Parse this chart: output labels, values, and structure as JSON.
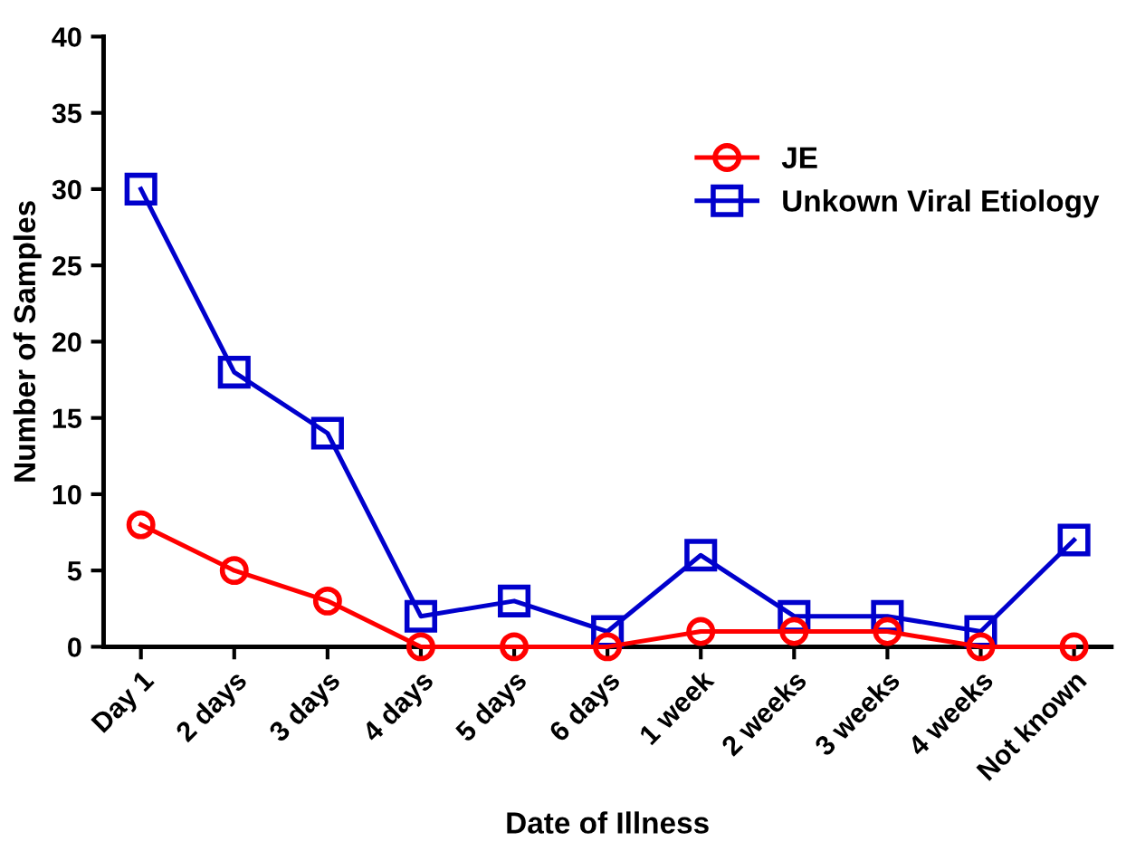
{
  "chart_data": {
    "type": "line",
    "xlabel": "Date of Illness",
    "ylabel": "Number of Samples",
    "categories": [
      "Day 1",
      "2 days",
      "3 days",
      "4 days",
      "5 days",
      "6 days",
      "1 week",
      "2 weeks",
      "3 weeks",
      "4 weeks",
      "Not known"
    ],
    "series": [
      {
        "name": "JE",
        "color": "#ff0000",
        "marker": "circle",
        "values": [
          8,
          5,
          3,
          0,
          0,
          0,
          1,
          1,
          1,
          0,
          0
        ]
      },
      {
        "name": "Unkown Viral Etiology",
        "color": "#0000cc",
        "marker": "square",
        "values": [
          30,
          18,
          14,
          2,
          3,
          1,
          6,
          2,
          2,
          1,
          7
        ]
      }
    ],
    "ylim": [
      0,
      40
    ],
    "yticks": [
      0,
      5,
      10,
      15,
      20,
      25,
      30,
      35,
      40
    ],
    "grid": false,
    "legend": "top right"
  }
}
